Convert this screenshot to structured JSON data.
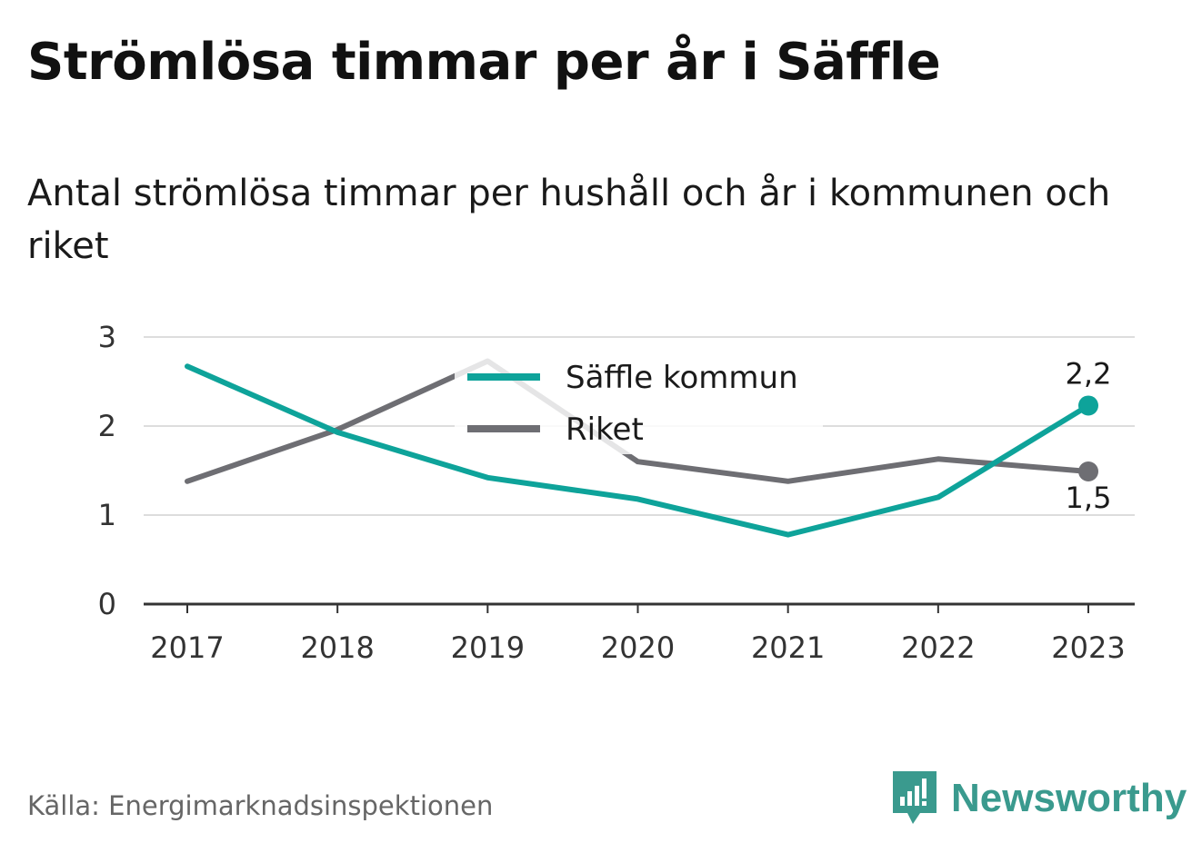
{
  "title": "Strömlösa timmar per år i Säffle",
  "subtitle": "Antal strömlösa timmar per hushåll och år i kommunen och riket",
  "source": "Källa: Energimarknadsinspektionen",
  "brand": {
    "name": "Newsworthy",
    "color": "#3a9a8e",
    "icon": "newsworthy-logo-icon"
  },
  "chart_data": {
    "type": "line",
    "x": [
      "2017",
      "2018",
      "2019",
      "2020",
      "2021",
      "2022",
      "2023"
    ],
    "ylim": [
      0,
      3
    ],
    "yticks": [
      "0",
      "1",
      "2",
      "3"
    ],
    "grid": true,
    "legend": "top-center",
    "series": [
      {
        "name": "Säffle kommun",
        "color": "#0ea39a",
        "values": [
          2.67,
          1.93,
          1.42,
          1.18,
          0.78,
          1.2,
          2.23
        ],
        "end_label": "2,2"
      },
      {
        "name": "Riket",
        "color": "#6e6e73",
        "values": [
          1.38,
          1.96,
          2.73,
          1.6,
          1.38,
          1.63,
          1.49
        ],
        "end_label": "1,5"
      }
    ]
  }
}
